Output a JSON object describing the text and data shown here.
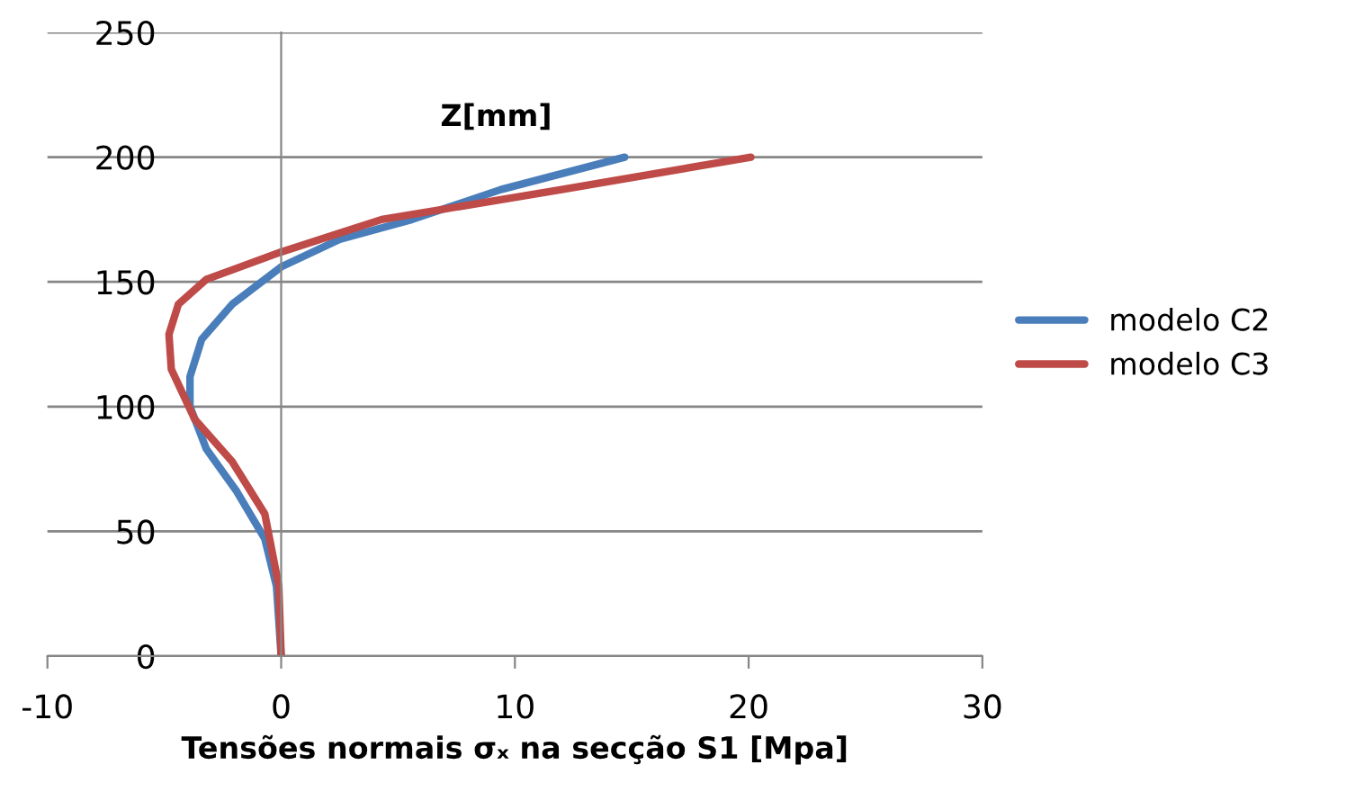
{
  "chart_data": {
    "type": "line",
    "xlabel": "Tensões normais σₓ na secção S1 [Mpa]",
    "ylabel": "Z[mm]",
    "xlim": [
      -10,
      30
    ],
    "xticks": [
      -10,
      0,
      10,
      20,
      30
    ],
    "ylim": [
      0,
      250
    ],
    "yticks": [
      0,
      50,
      100,
      150,
      200,
      250
    ],
    "grid": "y",
    "legend": "right",
    "marker": "none",
    "line_style": "solid",
    "series": [
      {
        "name": "modelo C2",
        "color": "#4a7ebb",
        "x": [
          0,
          -0.2,
          -0.7,
          -1.9,
          -3.2,
          -3.9,
          -3.9,
          -3.4,
          -2.1,
          0,
          2.5,
          5.6,
          9.4,
          14.7
        ],
        "values": [
          0,
          28,
          47,
          66,
          83,
          100,
          112,
          127,
          141,
          156,
          167,
          175,
          187,
          200
        ]
      },
      {
        "name": "modelo C3",
        "color": "#be4b48",
        "x": [
          0,
          -0.1,
          -0.7,
          -2.1,
          -3.7,
          -4.7,
          -4.8,
          -4.4,
          -3.2,
          0,
          4.3,
          12,
          20.1
        ],
        "values": [
          0,
          28,
          57,
          78,
          95,
          115,
          129,
          141,
          151,
          162,
          175,
          187,
          200
        ]
      }
    ]
  }
}
